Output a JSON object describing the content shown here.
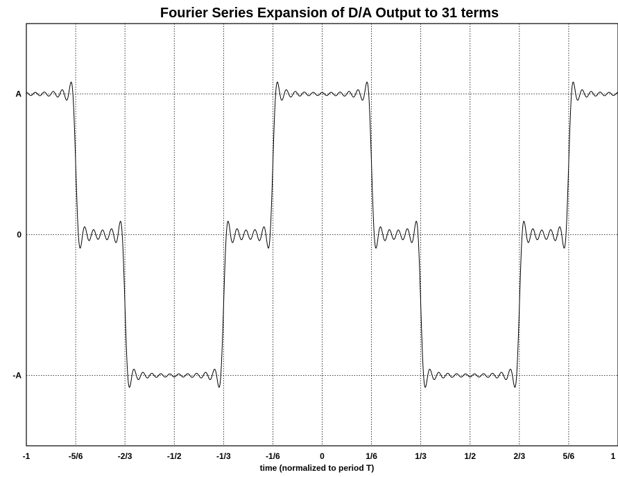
{
  "chart_data": {
    "type": "line",
    "title": "Fourier Series Expansion of D/A Output to 31 terms",
    "xlabel": "time (normalized to period T)",
    "ylabel": "",
    "xlim": [
      -1,
      1
    ],
    "ylim": [
      -1.5,
      1.5
    ],
    "x_ticks": [
      -1,
      -0.8333,
      -0.6667,
      -0.5,
      -0.3333,
      -0.1667,
      0,
      0.1667,
      0.3333,
      0.5,
      0.6667,
      0.8333,
      1
    ],
    "x_tick_labels": [
      "-1",
      "-5/6",
      "-2/3",
      "-1/2",
      "-1/3",
      "-1/6",
      "0",
      "1/6",
      "1/3",
      "1/2",
      "2/3",
      "5/6",
      "1"
    ],
    "y_ticks": [
      -1,
      0,
      1
    ],
    "y_tick_labels": [
      "-A",
      "0",
      "A"
    ],
    "grid": true,
    "series": [
      {
        "terms": 31,
        "sample_points": [
          {
            "x": -1.0,
            "y": 1.0
          },
          {
            "x": -0.8333,
            "y": 1.0
          },
          {
            "x": -0.8333,
            "y": 0.0
          },
          {
            "x": -0.6667,
            "y": 0.0
          },
          {
            "x": -0.6667,
            "y": -1.0
          },
          {
            "x": -0.3333,
            "y": -1.0
          },
          {
            "x": -0.3333,
            "y": 0.0
          },
          {
            "x": -0.1667,
            "y": 0.0
          },
          {
            "x": -0.1667,
            "y": 1.0
          },
          {
            "x": 0.1667,
            "y": 1.0
          },
          {
            "x": 0.1667,
            "y": 0.0
          },
          {
            "x": 0.3333,
            "y": 0.0
          },
          {
            "x": 0.3333,
            "y": -1.0
          },
          {
            "x": 0.6667,
            "y": -1.0
          },
          {
            "x": 0.6667,
            "y": 0.0
          },
          {
            "x": 0.8333,
            "y": 0.0
          },
          {
            "x": 0.8333,
            "y": 1.0
          },
          {
            "x": 1.0,
            "y": 1.0
          }
        ]
      }
    ]
  }
}
